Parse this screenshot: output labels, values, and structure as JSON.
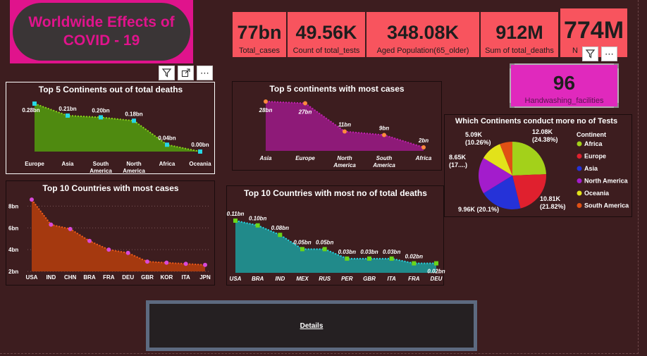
{
  "title": {
    "line1": "Worldwide Effects of",
    "line2": "COVID - 19"
  },
  "kpis": [
    {
      "value": "77bn",
      "label": "Total_cases"
    },
    {
      "value": "49.56K",
      "label": "Count of total_tests"
    },
    {
      "value": "348.08K",
      "label": "Aged Population(65_older)"
    },
    {
      "value": "912M",
      "label": "Sum of total_deaths"
    },
    {
      "value": "774M",
      "label": "N"
    }
  ],
  "handwashing": {
    "value": "96",
    "label": "Handwashing_facilities"
  },
  "details": {
    "label": "Details"
  },
  "colors": {
    "background": "#3d1d1f",
    "kpi": "#f8545e",
    "title": "#e0138c",
    "card": "#e029bd"
  },
  "chart_data": [
    {
      "id": "deaths_continents",
      "type": "area",
      "title": "Top 5 Continents out of total deaths",
      "categories": [
        "Europe",
        "Asia",
        "South America",
        "North America",
        "Africa",
        "Oceania"
      ],
      "values": [
        0.28,
        0.21,
        0.2,
        0.18,
        0.04,
        0.0
      ],
      "data_labels": [
        "0.28bn",
        "0.21bn",
        "0.20bn",
        "0.18bn",
        "0.04bn",
        "0.00bn"
      ],
      "colors": {
        "fill": "#4f8a10",
        "line": "#8ad41a",
        "marker": "#27d7e4"
      }
    },
    {
      "id": "cases_continents",
      "type": "area",
      "title": "Top 5 continents with most cases",
      "categories": [
        "Asia",
        "Europe",
        "North America",
        "South America",
        "Africa"
      ],
      "values": [
        28,
        27,
        11,
        9,
        2
      ],
      "data_labels": [
        "28bn",
        "27bn",
        "11bn",
        "9bn",
        "2bn"
      ],
      "colors": {
        "fill": "#8e1a78",
        "line": "#c020b0",
        "marker": "#ff8a3d"
      }
    },
    {
      "id": "tests_pie",
      "type": "pie",
      "title": "Which Continents conduct more no of Tests",
      "legend_title": "Continent",
      "legend_position": "right",
      "slices": [
        {
          "name": "Africa",
          "value": 12.08,
          "label": "12.08K",
          "pct": "(24.38%)",
          "color": "#a3d11a"
        },
        {
          "name": "Europe",
          "value": 10.81,
          "label": "10.81K",
          "pct": "(21.82%)",
          "color": "#e0202e"
        },
        {
          "name": "Asia",
          "value": 9.96,
          "label": "9.96K",
          "pct": "(20.1%)",
          "color": "#2532d8"
        },
        {
          "name": "North America",
          "value": 8.65,
          "label": "8.65K",
          "pct": "(17....)",
          "color": "#a31ccc"
        },
        {
          "name": "Oceania",
          "value": 5.09,
          "label": "5.09K",
          "pct": "(10.26%)",
          "color": "#e2e21a"
        },
        {
          "name": "South America",
          "value": 3.0,
          "label": "",
          "pct": "",
          "color": "#e05014"
        }
      ]
    },
    {
      "id": "cases_countries",
      "type": "area",
      "title": "Top 10 Countries with most cases",
      "categories": [
        "USA",
        "IND",
        "CHN",
        "BRA",
        "FRA",
        "DEU",
        "GBR",
        "KOR",
        "ITA",
        "JPN"
      ],
      "values": [
        8.6,
        6.3,
        5.9,
        4.8,
        4.0,
        3.7,
        2.9,
        2.8,
        2.7,
        2.6
      ],
      "ylim": [
        2,
        9
      ],
      "yticks": [
        "8bn",
        "6bn",
        "4bn",
        "2bn"
      ],
      "colors": {
        "fill": "#a5390f",
        "line": "#f05a1a",
        "marker": "#d849d8"
      }
    },
    {
      "id": "deaths_countries",
      "type": "area",
      "title": "Top 10 Countries with most no of total deaths",
      "categories": [
        "USA",
        "BRA",
        "IND",
        "MEX",
        "RUS",
        "PER",
        "GBR",
        "ITA",
        "FRA",
        "DEU"
      ],
      "values": [
        0.11,
        0.1,
        0.08,
        0.05,
        0.05,
        0.03,
        0.03,
        0.03,
        0.02,
        0.02
      ],
      "data_labels": [
        "0.11bn",
        "0.10bn",
        "0.08bn",
        "0.05bn",
        "0.05bn",
        "0.03bn",
        "0.03bn",
        "0.03bn",
        "0.02bn",
        "0.02bn"
      ],
      "colors": {
        "fill": "#218a8a",
        "line": "#27d7e4",
        "marker": "#6ad61a"
      }
    }
  ]
}
